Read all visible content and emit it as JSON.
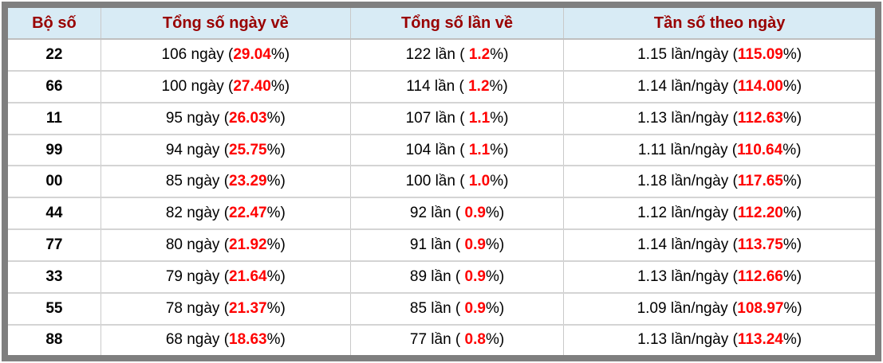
{
  "colors": {
    "frame": "#7f7f7f",
    "header_bg": "#d8ebf5",
    "header_text": "#990000",
    "highlight": "#ff0000",
    "text": "#000000"
  },
  "chart_data": {
    "type": "table",
    "columns": [
      "Bộ số",
      "Tổng số ngày về",
      "Tổng số lần về",
      "Tần số theo ngày"
    ],
    "rows": [
      {
        "pair": "22",
        "days": {
          "pre": "106 ngày (",
          "hl": "29.04",
          "post": "%)"
        },
        "times": {
          "pre": "122 lần ( ",
          "hl": "1.2",
          "post": "%)"
        },
        "freq": {
          "pre": "1.15 lần/ngày (",
          "hl": "115.09",
          "post": "%)"
        }
      },
      {
        "pair": "66",
        "days": {
          "pre": "100 ngày (",
          "hl": "27.40",
          "post": "%)"
        },
        "times": {
          "pre": "114 lần ( ",
          "hl": "1.2",
          "post": "%)"
        },
        "freq": {
          "pre": "1.14 lần/ngày (",
          "hl": "114.00",
          "post": "%)"
        }
      },
      {
        "pair": "11",
        "days": {
          "pre": "95 ngày (",
          "hl": "26.03",
          "post": "%)"
        },
        "times": {
          "pre": "107 lần ( ",
          "hl": "1.1",
          "post": "%)"
        },
        "freq": {
          "pre": "1.13 lần/ngày (",
          "hl": "112.63",
          "post": "%)"
        }
      },
      {
        "pair": "99",
        "days": {
          "pre": "94 ngày (",
          "hl": "25.75",
          "post": "%)"
        },
        "times": {
          "pre": "104 lần ( ",
          "hl": "1.1",
          "post": "%)"
        },
        "freq": {
          "pre": "1.11 lần/ngày (",
          "hl": "110.64",
          "post": "%)"
        }
      },
      {
        "pair": "00",
        "days": {
          "pre": "85 ngày (",
          "hl": "23.29",
          "post": "%)"
        },
        "times": {
          "pre": "100 lần ( ",
          "hl": "1.0",
          "post": "%)"
        },
        "freq": {
          "pre": "1.18 lần/ngày (",
          "hl": "117.65",
          "post": "%)"
        }
      },
      {
        "pair": "44",
        "days": {
          "pre": "82 ngày (",
          "hl": "22.47",
          "post": "%)"
        },
        "times": {
          "pre": "92 lần ( ",
          "hl": "0.9",
          "post": "%)"
        },
        "freq": {
          "pre": "1.12 lần/ngày (",
          "hl": "112.20",
          "post": "%)"
        }
      },
      {
        "pair": "77",
        "days": {
          "pre": "80 ngày (",
          "hl": "21.92",
          "post": "%)"
        },
        "times": {
          "pre": "91 lần ( ",
          "hl": "0.9",
          "post": "%)"
        },
        "freq": {
          "pre": "1.14 lần/ngày (",
          "hl": "113.75",
          "post": "%)"
        }
      },
      {
        "pair": "33",
        "days": {
          "pre": "79 ngày (",
          "hl": "21.64",
          "post": "%)"
        },
        "times": {
          "pre": "89 lần ( ",
          "hl": "0.9",
          "post": "%)"
        },
        "freq": {
          "pre": "1.13 lần/ngày (",
          "hl": "112.66",
          "post": "%)"
        }
      },
      {
        "pair": "55",
        "days": {
          "pre": "78 ngày (",
          "hl": "21.37",
          "post": "%)"
        },
        "times": {
          "pre": "85 lần ( ",
          "hl": "0.9",
          "post": "%)"
        },
        "freq": {
          "pre": "1.09 lần/ngày (",
          "hl": "108.97",
          "post": "%)"
        }
      },
      {
        "pair": "88",
        "days": {
          "pre": "68 ngày (",
          "hl": "18.63",
          "post": "%)"
        },
        "times": {
          "pre": "77 lần ( ",
          "hl": "0.8",
          "post": "%)"
        },
        "freq": {
          "pre": "1.13 lần/ngày (",
          "hl": "113.24",
          "post": "%)"
        }
      }
    ]
  }
}
